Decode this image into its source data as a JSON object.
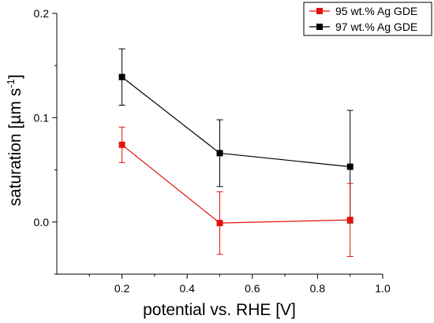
{
  "chart_data": {
    "type": "line",
    "xlabel": "potential vs. RHE [V]",
    "ylabel_main": "saturation [µm s",
    "ylabel_sup": "-1",
    "ylabel_end": "]",
    "xlim": [
      0.0,
      1.0
    ],
    "ylim": [
      -0.05,
      0.2
    ],
    "x_ticks": [
      0.2,
      0.4,
      0.6,
      0.8,
      1.0
    ],
    "x_tick_labels": [
      "0.2",
      "0.4",
      "0.6",
      "0.8",
      "1.0"
    ],
    "y_ticks": [
      0.0,
      0.1,
      0.2
    ],
    "y_tick_labels": [
      "0.0",
      "0.1",
      "0.2"
    ],
    "grid": false,
    "legend_position": "top-right",
    "series": [
      {
        "name": "95 wt.% Ag GDE",
        "color": "#e3120b",
        "x": [
          0.2,
          0.5,
          0.9
        ],
        "y": [
          0.074,
          -0.001,
          0.002
        ],
        "error": [
          0.017,
          0.03,
          0.035
        ]
      },
      {
        "name": "97 wt.% Ag GDE",
        "color": "#000000",
        "x": [
          0.2,
          0.5,
          0.9
        ],
        "y": [
          0.139,
          0.066,
          0.053
        ],
        "error": [
          0.027,
          0.032,
          0.054
        ]
      }
    ]
  }
}
